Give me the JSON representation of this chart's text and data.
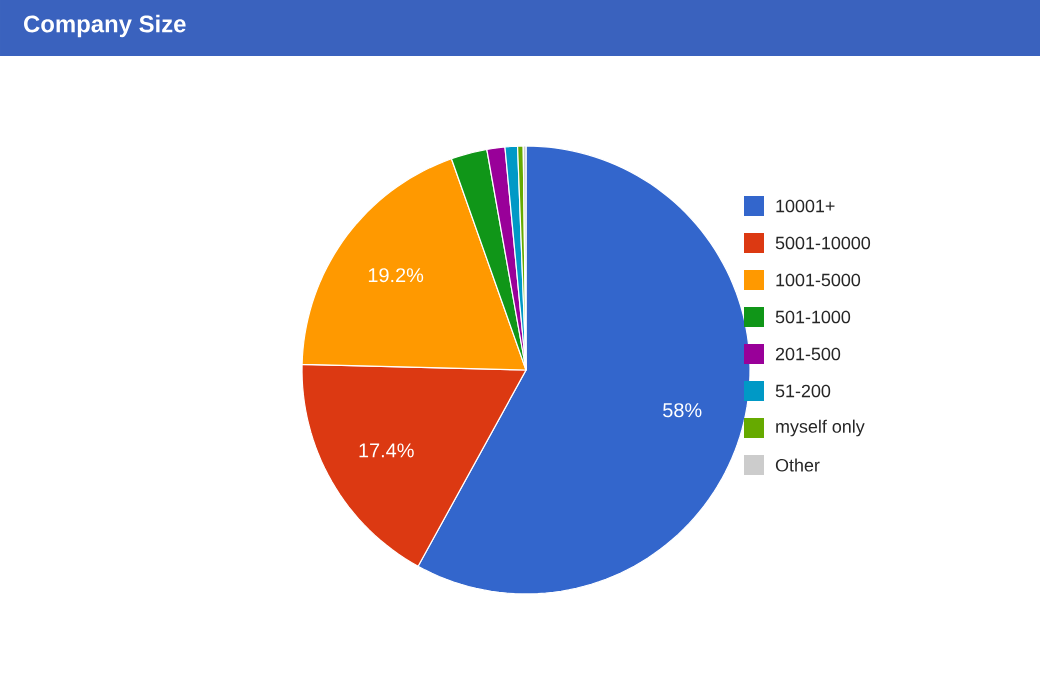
{
  "chart_data": {
    "type": "pie",
    "title": "Company Size",
    "categories": [
      "10001+",
      "5001-10000",
      "1001-5000",
      "501-1000",
      "201-500",
      "51-200",
      "myself only",
      "Other"
    ],
    "values": [
      58,
      17.4,
      19.2,
      2.6,
      1.3,
      0.9,
      0.4,
      0.2
    ],
    "colors": [
      "#3366cc",
      "#dc3912",
      "#ff9900",
      "#109618",
      "#990099",
      "#0099c6",
      "#66aa00",
      "#cccccc"
    ],
    "value_labels": [
      "58%",
      "17.4%",
      "19.2%",
      null,
      null,
      null,
      null,
      null
    ],
    "legend": "right"
  }
}
